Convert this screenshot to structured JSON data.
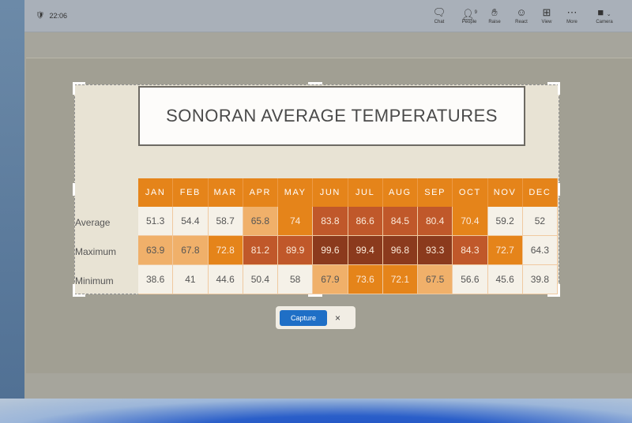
{
  "topbar": {
    "time": "22:06",
    "buttons": [
      {
        "label": "Chat",
        "icon": "chat-icon"
      },
      {
        "label": "People",
        "icon": "people-icon",
        "count": "9"
      },
      {
        "label": "Raise",
        "icon": "hand-icon"
      },
      {
        "label": "React",
        "icon": "smile-icon"
      },
      {
        "label": "View",
        "icon": "grid-icon"
      },
      {
        "label": "More",
        "icon": "more-icon"
      },
      {
        "label": "Camera",
        "icon": "camera-icon"
      }
    ]
  },
  "slide": {
    "title": "SONORAN AVERAGE TEMPERATURES",
    "months": [
      "JAN",
      "FEB",
      "MAR",
      "APR",
      "MAY",
      "JUN",
      "JUL",
      "AUG",
      "SEP",
      "OCT",
      "NOV",
      "DEC"
    ],
    "rows": [
      {
        "label": "Average",
        "values": [
          "51.3",
          "54.4",
          "58.7",
          "65.8",
          "74",
          "83.8",
          "86.6",
          "84.5",
          "80.4",
          "70.4",
          "59.2",
          "52"
        ],
        "shades": [
          "L",
          "L",
          "L",
          "LO",
          "O",
          "R",
          "R",
          "R",
          "R",
          "O",
          "L",
          "L"
        ]
      },
      {
        "label": "Maximum",
        "values": [
          "63.9",
          "67.8",
          "72.8",
          "81.2",
          "89.9",
          "99.6",
          "99.4",
          "96.8",
          "93.3",
          "84.3",
          "72.7",
          "64.3"
        ],
        "shades": [
          "LO",
          "LO",
          "O",
          "R",
          "R",
          "D",
          "D",
          "D",
          "D",
          "R",
          "O",
          "L"
        ]
      },
      {
        "label": "Minimum",
        "values": [
          "38.6",
          "41",
          "44.6",
          "50.4",
          "58",
          "67.9",
          "73.6",
          "72.1",
          "67.5",
          "56.6",
          "45.6",
          "39.8"
        ],
        "shades": [
          "L",
          "L",
          "L",
          "L",
          "L",
          "LO",
          "O",
          "O",
          "LO",
          "L",
          "L",
          "L"
        ]
      }
    ],
    "colors": {
      "L": "#f5f1e8",
      "LO": "#f0b06a",
      "O": "#e5841a",
      "R": "#c0582a",
      "D": "#8b3a1d"
    }
  },
  "capture": {
    "button": "Capture",
    "close": "×"
  }
}
